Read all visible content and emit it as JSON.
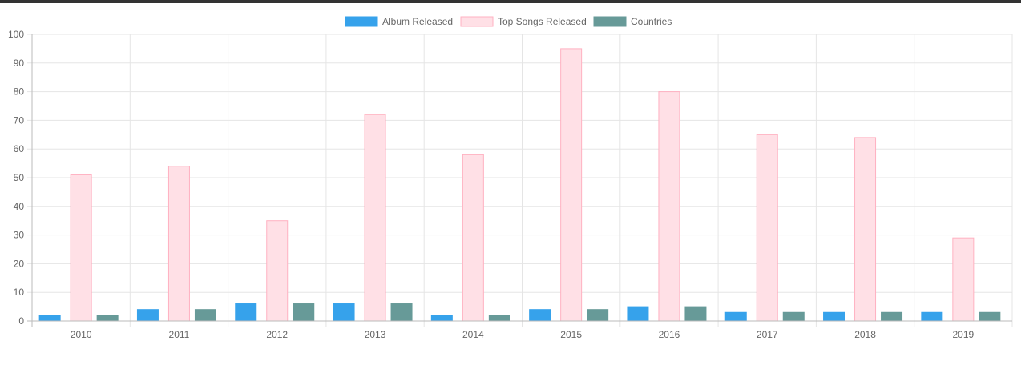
{
  "colors": {
    "album_fill": "#36A2EB",
    "album_border": "#36A2EB",
    "songs_fill": "#FFE0E6",
    "songs_border": "#FFB1C1",
    "countries_fill": "#679A98",
    "countries_border": "#679A98",
    "grid": "#E5E5E5",
    "axis": "#BBBBBB",
    "tick_text": "#666666",
    "top_bar": "#333333"
  },
  "chart_data": {
    "type": "bar",
    "categories": [
      "2010",
      "2011",
      "2012",
      "2013",
      "2014",
      "2015",
      "2016",
      "2017",
      "2018",
      "2019"
    ],
    "series": [
      {
        "name": "Album Released",
        "values": [
          2,
          4,
          6,
          6,
          2,
          4,
          5,
          3,
          3,
          3
        ]
      },
      {
        "name": "Top Songs Released",
        "values": [
          51,
          54,
          35,
          72,
          58,
          95,
          80,
          65,
          64,
          29
        ]
      },
      {
        "name": "Countries",
        "values": [
          2,
          4,
          6,
          6,
          2,
          4,
          5,
          3,
          3,
          3
        ]
      }
    ],
    "ylim": [
      0,
      100
    ],
    "yticks": [
      0,
      10,
      20,
      30,
      40,
      50,
      60,
      70,
      80,
      90,
      100
    ],
    "grid": true,
    "legend_position": "top"
  }
}
